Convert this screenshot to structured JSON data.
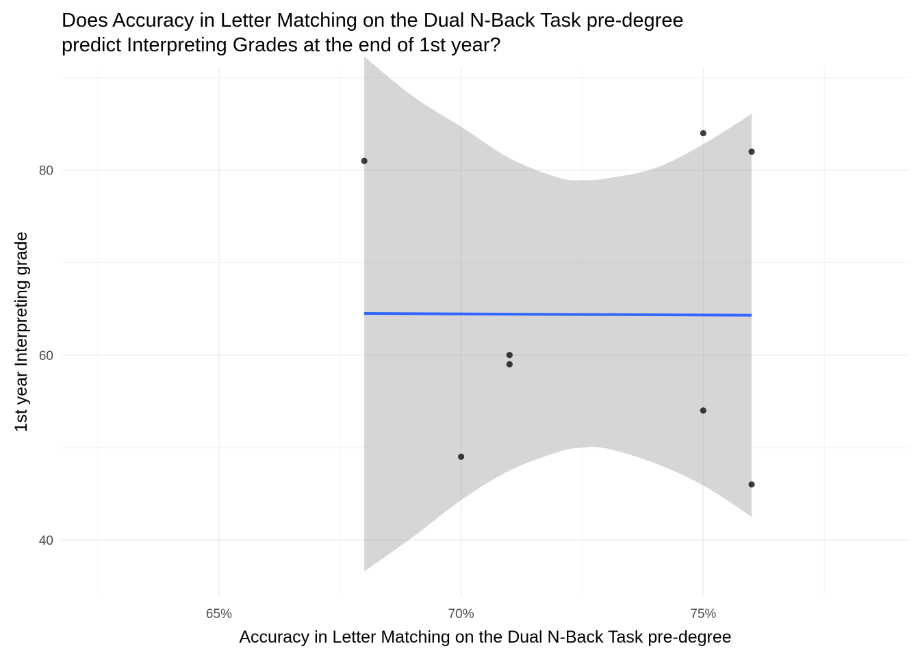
{
  "chart_data": {
    "type": "scatter",
    "title": "Does Accuracy in Letter Matching on the Dual N-Back Task pre-degree\npredict Interpreting Grades at the end of 1st year?",
    "xlabel": "Accuracy in Letter Matching on the Dual N-Back Task pre-degree",
    "ylabel": "1st year Interpreting grade",
    "x_ticks": [
      {
        "value": 0.65,
        "label": "65%"
      },
      {
        "value": 0.7,
        "label": "70%"
      },
      {
        "value": 0.75,
        "label": "75%"
      }
    ],
    "y_ticks": [
      {
        "value": 40,
        "label": "40"
      },
      {
        "value": 60,
        "label": "60"
      },
      {
        "value": 80,
        "label": "80"
      }
    ],
    "xlim": [
      0.6175,
      0.7925
    ],
    "ylim": [
      34,
      91
    ],
    "grid": true,
    "points": [
      {
        "x": 0.68,
        "y": 81
      },
      {
        "x": 0.7,
        "y": 49
      },
      {
        "x": 0.71,
        "y": 60
      },
      {
        "x": 0.71,
        "y": 59
      },
      {
        "x": 0.75,
        "y": 84
      },
      {
        "x": 0.75,
        "y": 54
      },
      {
        "x": 0.76,
        "y": 82
      },
      {
        "x": 0.76,
        "y": 46
      }
    ],
    "regression": {
      "x": [
        0.68,
        0.76
      ],
      "y": [
        64.5,
        64.3
      ],
      "color": "#3366ff"
    },
    "confidence_band": {
      "color": "#999999",
      "x": [
        0.68,
        0.69,
        0.7,
        0.71,
        0.72,
        0.725,
        0.73,
        0.74,
        0.75,
        0.76
      ],
      "upper": [
        92.3,
        88.0,
        84.7,
        81.3,
        79.2,
        78.9,
        79.1,
        80.2,
        82.8,
        86.1
      ],
      "lower": [
        36.6,
        40.3,
        44.3,
        47.5,
        49.5,
        50.0,
        49.9,
        48.3,
        45.9,
        42.5
      ]
    },
    "point_color": "#000000"
  }
}
